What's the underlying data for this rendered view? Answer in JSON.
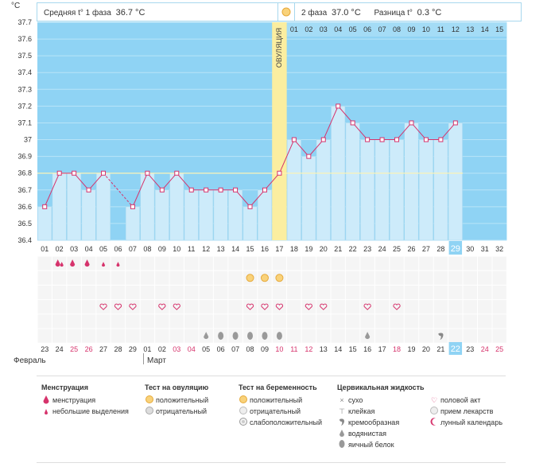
{
  "header": {
    "unit": "°C",
    "phase1_label": "Средняя t° 1 фаза",
    "phase1_value": "36.7 °C",
    "phase2_label": "2 фаза",
    "phase2_value": "37.0 °C",
    "diff_label": "Разница t°",
    "diff_value": "0.3 °C"
  },
  "ovulation_label": "ОВУЛЯЦИЯ",
  "colors": {
    "chart_bg": "#8fd3f4",
    "bar": "#cdebfa",
    "bar_edge": "#a6d8ef",
    "line": "#d6336c",
    "ovulation": "#fbeea0",
    "coverline": "#f4ea9c",
    "highlight": "#8fd3f4",
    "red": "#d6336c"
  },
  "chart_data": {
    "type": "line",
    "title": "",
    "xlabel": "",
    "ylabel": "°C",
    "ylim": [
      36.4,
      37.7
    ],
    "yticks": [
      "36.4",
      "36.5",
      "36.6",
      "36.7",
      "36.8",
      "36.9",
      "37",
      "37.1",
      "37.2",
      "37.3",
      "37.4",
      "37.5",
      "37.6",
      "37.7"
    ],
    "cycle_days": [
      "01",
      "02",
      "03",
      "04",
      "05",
      "06",
      "07",
      "08",
      "09",
      "10",
      "11",
      "12",
      "13",
      "14",
      "15",
      "16",
      "17",
      "18",
      "19",
      "20",
      "21",
      "22",
      "23",
      "24",
      "25",
      "26",
      "27",
      "28",
      "29",
      "30",
      "31",
      "32"
    ],
    "series": [
      {
        "values": [
          36.6,
          36.8,
          36.8,
          36.7,
          36.8,
          null,
          36.6,
          36.8,
          36.7,
          36.8,
          36.7,
          36.7,
          36.7,
          36.7,
          36.6,
          36.7,
          36.8,
          37.0,
          36.9,
          37.0,
          37.2,
          37.1,
          37.0,
          37.0,
          37.0,
          37.1,
          37.0,
          37.0,
          37.1,
          null,
          null,
          null
        ]
      }
    ],
    "ovulation_day": "17",
    "coverline": 36.8,
    "phase2_day_labels": [
      "01",
      "02",
      "03",
      "04",
      "05",
      "06",
      "07",
      "08",
      "09",
      "10",
      "11",
      "12",
      "13",
      "14",
      "15"
    ],
    "current_day": "29"
  },
  "calendar": {
    "dates": [
      "23",
      "24",
      "25",
      "26",
      "27",
      "28",
      "29",
      "01",
      "02",
      "03",
      "04",
      "05",
      "06",
      "07",
      "08",
      "09",
      "10",
      "11",
      "12",
      "13",
      "14",
      "15",
      "16",
      "17",
      "18",
      "19",
      "20",
      "21",
      "22",
      "23",
      "24",
      "25"
    ],
    "red_dates": [
      "25",
      "26",
      "03",
      "04",
      "10",
      "16",
      "17",
      "18",
      "24",
      "25"
    ],
    "today_index": 28,
    "months": [
      "Февраль",
      "Март"
    ],
    "menstruation_heavy": [
      1,
      2,
      3
    ],
    "menstruation_light": [
      1,
      4,
      5
    ],
    "ovulation_test_pos": [
      14,
      15,
      16
    ],
    "intercourse": [
      4,
      5,
      6,
      8,
      9,
      14,
      15,
      16,
      18,
      19,
      22,
      24
    ],
    "fluid_watery": [
      11,
      22
    ],
    "fluid_eggwhite": [
      12,
      13,
      14,
      15,
      16
    ],
    "fluid_creamy": [
      27
    ]
  },
  "legend": {
    "menstruation": {
      "title": "Менструация",
      "items": [
        "менструация",
        "небольшие выделения"
      ]
    },
    "ovulation_test": {
      "title": "Тест на овуляцию",
      "items": [
        "положительный",
        "отрицательный"
      ]
    },
    "pregnancy_test": {
      "title": "Тест на беременность",
      "items": [
        "положительный",
        "отрицательный",
        "слабоположительный"
      ]
    },
    "fluid": {
      "title": "Цервикальная жидкость",
      "items": [
        "сухо",
        "клейкая",
        "кремообразная",
        "водянистая",
        "яичный белок"
      ]
    },
    "other": {
      "items": [
        "половой акт",
        "прием лекарств",
        "лунный календарь"
      ]
    }
  }
}
